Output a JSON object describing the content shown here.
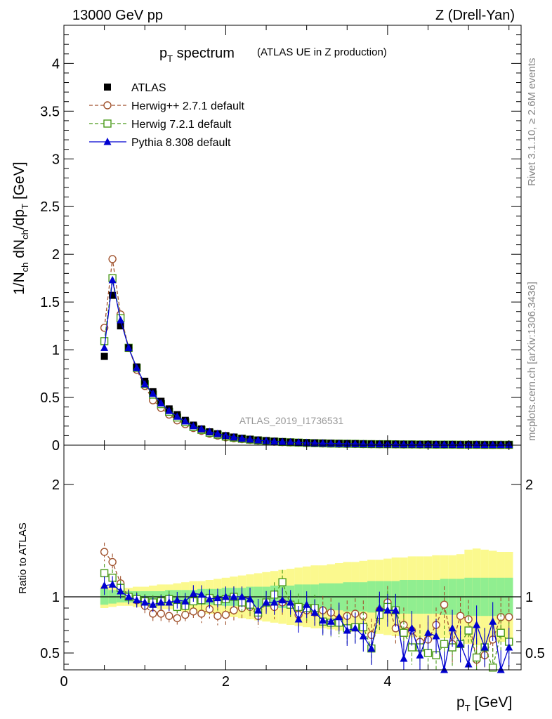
{
  "header": {
    "left": "13000 GeV pp",
    "right": "Z (Drell-Yan)"
  },
  "title": {
    "main": "p",
    "main_sub": "T",
    "main_rest": " spectrum",
    "sub": "(ATLAS UE in Z production)"
  },
  "side_labels": {
    "rivet": "Rivet 3.1.10, ≥ 2.6M events",
    "mcplots": "mcplots.cern.ch [arXiv:1306.3436]"
  },
  "analysis_id": "ATLAS_2019_I1736531",
  "axes": {
    "ylabel_top": "1/N_ch dN_ch/dp_T [GeV]",
    "ylabel_bottom": "Ratio to ATLAS",
    "xlabel": "p_T [GeV]",
    "xlim": [
      0,
      5.65
    ],
    "ylim_top": [
      0,
      4.4
    ],
    "ylim_ratio": [
      0.35,
      2.35
    ],
    "xticks": [
      "0",
      "2",
      "4"
    ],
    "yticks_top": [
      "0",
      "0.5",
      "1",
      "1.5",
      "2",
      "2.5",
      "3",
      "3.5",
      "4"
    ],
    "yticks_ratio": [
      "0.5",
      "1",
      "2"
    ]
  },
  "legend": [
    {
      "label": "ATLAS",
      "color": "#000000",
      "marker": "square-filled"
    },
    {
      "label": "Herwig++ 2.7.1 default",
      "color": "#a0522d",
      "marker": "circle-open"
    },
    {
      "label": "Herwig 7.2.1 default",
      "color": "#4a9a1a",
      "marker": "square-open"
    },
    {
      "label": "Pythia 8.308 default",
      "color": "#0000d0",
      "marker": "triangle-filled"
    }
  ],
  "chart_data": {
    "type": "line",
    "x": [
      0.5,
      0.6,
      0.7,
      0.8,
      0.9,
      1.0,
      1.1,
      1.2,
      1.3,
      1.4,
      1.5,
      1.6,
      1.7,
      1.8,
      1.9,
      2.0,
      2.1,
      2.2,
      2.3,
      2.4,
      2.5,
      2.6,
      2.7,
      2.8,
      2.9,
      3.0,
      3.1,
      3.2,
      3.3,
      3.4,
      3.5,
      3.6,
      3.7,
      3.8,
      3.9,
      4.0,
      4.1,
      4.2,
      4.3,
      4.4,
      4.5,
      4.6,
      4.7,
      4.8,
      4.9,
      5.0,
      5.1,
      5.2,
      5.3,
      5.4,
      5.5
    ],
    "series": [
      {
        "name": "ATLAS",
        "values": [
          0.93,
          1.57,
          1.25,
          1.02,
          0.82,
          0.67,
          0.56,
          0.46,
          0.38,
          0.32,
          0.26,
          0.21,
          0.17,
          0.14,
          0.12,
          0.1,
          0.085,
          0.072,
          0.062,
          0.054,
          0.047,
          0.041,
          0.036,
          0.032,
          0.029,
          0.026,
          0.023,
          0.021,
          0.019,
          0.017,
          0.016,
          0.015,
          0.013,
          0.012,
          0.011,
          0.011,
          0.01,
          0.009,
          0.009,
          0.008,
          0.008,
          0.007,
          0.007,
          0.007,
          0.006,
          0.006,
          0.006,
          0.005,
          0.005,
          0.005,
          0.005
        ]
      },
      {
        "name": "Herwig++ 2.7.1 default",
        "values": [
          1.23,
          1.95,
          1.37,
          1.02,
          0.79,
          0.62,
          0.47,
          0.39,
          0.32,
          0.26,
          0.22,
          0.18,
          0.15,
          0.12,
          0.1,
          0.082,
          0.072,
          0.063,
          0.055,
          0.047,
          0.042,
          0.036,
          0.032,
          0.028,
          0.025,
          0.022,
          0.02,
          0.018,
          0.016,
          0.014,
          0.013,
          0.012,
          0.011,
          0.01,
          0.009,
          0.009,
          0.008,
          0.007,
          0.007,
          0.006,
          0.006,
          0.006,
          0.005,
          0.005,
          0.005,
          0.005,
          0.004,
          0.004,
          0.004,
          0.004,
          0.004
        ]
      },
      {
        "name": "Herwig 7.2.1 default",
        "values": [
          1.09,
          1.75,
          1.33,
          1.02,
          0.81,
          0.64,
          0.53,
          0.43,
          0.35,
          0.29,
          0.24,
          0.19,
          0.16,
          0.13,
          0.11,
          0.09,
          0.079,
          0.067,
          0.058,
          0.05,
          0.044,
          0.038,
          0.034,
          0.03,
          0.027,
          0.024,
          0.021,
          0.019,
          0.017,
          0.016,
          0.015,
          0.014,
          0.012,
          0.011,
          0.01,
          0.01,
          0.009,
          0.008,
          0.008,
          0.007,
          0.007,
          0.006,
          0.006,
          0.006,
          0.005,
          0.005,
          0.005,
          0.004,
          0.004,
          0.004,
          0.004
        ]
      },
      {
        "name": "Pythia 8.308 default",
        "values": [
          1.02,
          1.73,
          1.31,
          1.02,
          0.81,
          0.64,
          0.54,
          0.44,
          0.36,
          0.3,
          0.25,
          0.2,
          0.17,
          0.14,
          0.12,
          0.1,
          0.084,
          0.071,
          0.061,
          0.052,
          0.046,
          0.04,
          0.035,
          0.031,
          0.028,
          0.025,
          0.022,
          0.02,
          0.018,
          0.016,
          0.015,
          0.014,
          0.012,
          0.011,
          0.01,
          0.01,
          0.009,
          0.008,
          0.008,
          0.007,
          0.007,
          0.006,
          0.006,
          0.006,
          0.005,
          0.005,
          0.005,
          0.004,
          0.004,
          0.004,
          0.004
        ]
      }
    ],
    "ratio": [
      {
        "name": "Herwig++ 2.7.1 default",
        "values": [
          1.4,
          1.31,
          1.12,
          1.0,
          0.97,
          0.92,
          0.85,
          0.85,
          0.83,
          0.81,
          0.84,
          0.87,
          0.85,
          0.89,
          0.83,
          0.84,
          0.88,
          0.9,
          0.91,
          0.83,
          0.95,
          0.91,
          0.95,
          0.93,
          0.84,
          0.88,
          0.86,
          0.88,
          0.86,
          0.8,
          0.83,
          0.85,
          0.83,
          0.66,
          0.88,
          0.95,
          0.72,
          0.75,
          0.7,
          0.6,
          0.62,
          0.75,
          0.93,
          0.58,
          0.83,
          0.8,
          0.44,
          0.48,
          0.62,
          0.82,
          0.82
        ]
      },
      {
        "name": "Herwig 7.2.1 default",
        "values": [
          1.21,
          1.17,
          1.08,
          1.0,
          0.98,
          0.96,
          0.95,
          0.96,
          0.98,
          0.91,
          0.92,
          0.96,
          0.97,
          0.99,
          0.96,
          0.98,
          1.0,
          0.95,
          0.93,
          0.86,
          0.95,
          1.02,
          1.13,
          0.93,
          0.91,
          0.9,
          0.9,
          0.78,
          0.77,
          0.77,
          0.72,
          0.73,
          0.73,
          0.54,
          0.84,
          0.91,
          0.88,
          0.68,
          0.55,
          0.55,
          0.5,
          0.48,
          0.58,
          0.55,
          0.58,
          0.7,
          0.46,
          0.55,
          0.37,
          0.68,
          0.6
        ]
      },
      {
        "name": "Pythia 8.308 default",
        "values": [
          1.1,
          1.11,
          1.05,
          1.0,
          0.97,
          0.95,
          0.93,
          0.95,
          0.95,
          0.97,
          0.96,
          1.03,
          1.02,
          0.98,
          0.99,
          1.0,
          1.0,
          1.0,
          0.98,
          0.88,
          0.95,
          0.95,
          0.97,
          0.95,
          0.8,
          0.93,
          0.86,
          0.79,
          0.78,
          0.82,
          0.7,
          0.72,
          0.65,
          0.54,
          0.9,
          0.88,
          0.88,
          0.45,
          0.72,
          0.48,
          0.68,
          0.65,
          0.35,
          0.72,
          0.58,
          0.4,
          0.75,
          0.55,
          0.78,
          0.35,
          0.55
        ]
      }
    ],
    "ratio_band_inner": [
      0.07,
      0.06,
      0.05,
      0.05,
      0.05,
      0.05,
      0.05,
      0.05,
      0.06,
      0.06,
      0.06,
      0.06,
      0.07,
      0.07,
      0.07,
      0.08,
      0.08,
      0.08,
      0.09,
      0.09,
      0.09,
      0.1,
      0.1,
      0.1,
      0.11,
      0.11,
      0.11,
      0.12,
      0.12,
      0.12,
      0.13,
      0.13,
      0.13,
      0.14,
      0.14,
      0.14,
      0.14,
      0.15,
      0.15,
      0.15,
      0.15,
      0.15,
      0.16,
      0.16,
      0.16,
      0.17,
      0.17,
      0.17,
      0.17,
      0.17,
      0.17
    ],
    "ratio_band_outer": [
      0.1,
      0.09,
      0.08,
      0.08,
      0.09,
      0.09,
      0.1,
      0.11,
      0.11,
      0.12,
      0.13,
      0.14,
      0.14,
      0.15,
      0.16,
      0.17,
      0.18,
      0.19,
      0.2,
      0.21,
      0.22,
      0.23,
      0.24,
      0.25,
      0.26,
      0.27,
      0.28,
      0.28,
      0.29,
      0.3,
      0.31,
      0.31,
      0.32,
      0.33,
      0.33,
      0.34,
      0.35,
      0.35,
      0.36,
      0.36,
      0.36,
      0.37,
      0.37,
      0.37,
      0.38,
      0.42,
      0.43,
      0.42,
      0.41,
      0.4,
      0.4
    ]
  }
}
